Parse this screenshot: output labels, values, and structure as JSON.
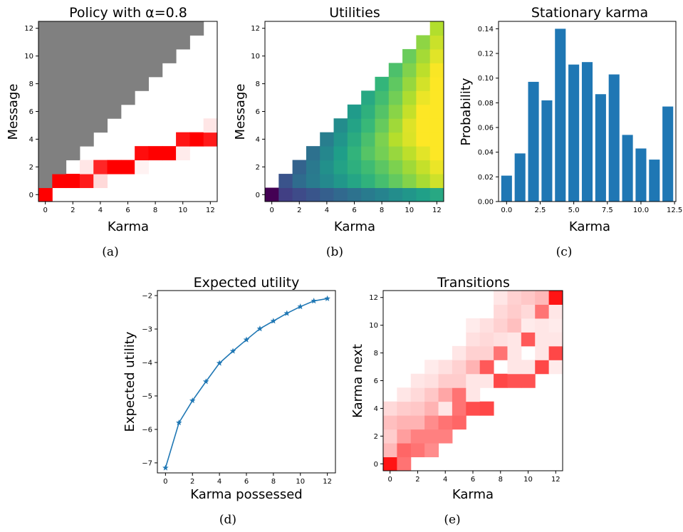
{
  "colors": {
    "policy_gray": "#808080",
    "policy_red": "#ff0000",
    "bar_blue": "#1f77b4",
    "line_blue": "#1f77b4",
    "transition_red": "#ff0000"
  },
  "captions": [
    "(a)",
    "(b)",
    "(c)",
    "(d)",
    "(e)"
  ],
  "chart_data": [
    {
      "id": "a",
      "type": "heatmap",
      "title": "Policy with α=0.8",
      "xlabel": "Karma",
      "ylabel": "Message",
      "x_ticks": [
        0,
        2,
        4,
        6,
        8,
        10,
        12
      ],
      "y_ticks": [
        0,
        2,
        4,
        6,
        8,
        10,
        12
      ],
      "size": 13,
      "note_values": "cell (karma k, message m): 'gray' = infeasible message (m > k); number = probability of sending that message",
      "policy": [
        {
          "karma": 0,
          "message_probs": {
            "0": 1.0
          }
        },
        {
          "karma": 1,
          "message_probs": {
            "1": 1.0
          }
        },
        {
          "karma": 2,
          "message_probs": {
            "1": 1.0
          }
        },
        {
          "karma": 3,
          "message_probs": {
            "1": 0.9,
            "2": 0.1
          }
        },
        {
          "karma": 4,
          "message_probs": {
            "1": 0.15,
            "2": 0.85
          }
        },
        {
          "karma": 5,
          "message_probs": {
            "2": 1.0
          }
        },
        {
          "karma": 6,
          "message_probs": {
            "2": 1.0
          }
        },
        {
          "karma": 7,
          "message_probs": {
            "2": 0.05,
            "3": 0.95
          }
        },
        {
          "karma": 8,
          "message_probs": {
            "3": 1.0
          }
        },
        {
          "karma": 9,
          "message_probs": {
            "3": 1.0
          }
        },
        {
          "karma": 10,
          "message_probs": {
            "3": 0.08,
            "4": 0.92
          }
        },
        {
          "karma": 11,
          "message_probs": {
            "4": 1.0
          }
        },
        {
          "karma": 12,
          "message_probs": {
            "4": 0.9,
            "5": 0.1
          }
        }
      ]
    },
    {
      "id": "b",
      "type": "heatmap",
      "title": "Utilities",
      "xlabel": "Karma",
      "ylabel": "Message",
      "x_ticks": [
        0,
        2,
        4,
        6,
        8,
        10,
        12
      ],
      "y_ticks": [
        0,
        2,
        4,
        6,
        8,
        10,
        12
      ],
      "size": 13,
      "colormap": "viridis",
      "note_values": "defined for message <= karma; color increases with karma, bottom row lower"
    },
    {
      "id": "c",
      "type": "bar",
      "title": "Stationary karma",
      "xlabel": "Karma",
      "ylabel": "Probability",
      "categories": [
        0,
        1,
        2,
        3,
        4,
        5,
        6,
        7,
        8,
        9,
        10,
        11,
        12
      ],
      "values": [
        0.021,
        0.039,
        0.097,
        0.082,
        0.14,
        0.111,
        0.113,
        0.087,
        0.103,
        0.054,
        0.043,
        0.034,
        0.077
      ],
      "xlim": [
        -0.6,
        12.6
      ],
      "ylim": [
        0,
        0.146
      ],
      "x_ticks": [
        "0.0",
        "2.5",
        "5.0",
        "7.5",
        "10.0",
        "12.5"
      ],
      "y_ticks": [
        "0.00",
        "0.02",
        "0.04",
        "0.06",
        "0.08",
        "0.10",
        "0.12",
        "0.14"
      ]
    },
    {
      "id": "d",
      "type": "line",
      "title": "Expected utility",
      "xlabel": "Karma possessed",
      "ylabel": "Expected utility",
      "x": [
        0,
        1,
        2,
        3,
        4,
        5,
        6,
        7,
        8,
        9,
        10,
        11,
        12
      ],
      "y": [
        -7.15,
        -5.8,
        -5.14,
        -4.57,
        -4.02,
        -3.66,
        -3.32,
        -2.99,
        -2.76,
        -2.53,
        -2.33,
        -2.16,
        -2.09
      ],
      "xlim": [
        -0.6,
        12.6
      ],
      "ylim": [
        -7.3,
        -1.85
      ],
      "x_ticks": [
        0,
        2,
        4,
        6,
        8,
        10,
        12
      ],
      "y_ticks": [
        -7,
        -6,
        -5,
        -4,
        -3,
        -2
      ],
      "marker": "star"
    },
    {
      "id": "e",
      "type": "heatmap",
      "title": "Transitions",
      "xlabel": "Karma",
      "ylabel": "Karma next",
      "x_ticks": [
        0,
        2,
        4,
        6,
        8,
        10,
        12
      ],
      "y_ticks": [
        0,
        2,
        4,
        6,
        8,
        10,
        12
      ],
      "size": 13,
      "note_values": "cells: [karma, karma_next, intensity 0-1]",
      "cells": [
        [
          0,
          0,
          0.92
        ],
        [
          0,
          1,
          0.28
        ],
        [
          0,
          2,
          0.2
        ],
        [
          0,
          3,
          0.25
        ],
        [
          0,
          4,
          0.15
        ],
        [
          1,
          0,
          0.55
        ],
        [
          1,
          1,
          0.6
        ],
        [
          1,
          2,
          0.38
        ],
        [
          1,
          3,
          0.3
        ],
        [
          1,
          4,
          0.2
        ],
        [
          1,
          5,
          0.1
        ],
        [
          2,
          1,
          0.55
        ],
        [
          2,
          2,
          0.5
        ],
        [
          2,
          3,
          0.3
        ],
        [
          2,
          4,
          0.22
        ],
        [
          2,
          5,
          0.15
        ],
        [
          2,
          6,
          0.1
        ],
        [
          3,
          1,
          0.45
        ],
        [
          3,
          2,
          0.5
        ],
        [
          3,
          3,
          0.45
        ],
        [
          3,
          4,
          0.3
        ],
        [
          3,
          5,
          0.22
        ],
        [
          3,
          6,
          0.12
        ],
        [
          3,
          7,
          0.08
        ],
        [
          4,
          2,
          0.5
        ],
        [
          4,
          3,
          0.55
        ],
        [
          4,
          4,
          0.1
        ],
        [
          4,
          5,
          0.35
        ],
        [
          4,
          6,
          0.2
        ],
        [
          4,
          7,
          0.12
        ],
        [
          5,
          3,
          0.6
        ],
        [
          5,
          4,
          0.55
        ],
        [
          5,
          5,
          0.55
        ],
        [
          5,
          6,
          0.2
        ],
        [
          5,
          7,
          0.18
        ],
        [
          5,
          8,
          0.1
        ],
        [
          6,
          4,
          0.7
        ],
        [
          6,
          5,
          0.1
        ],
        [
          6,
          6,
          0.1
        ],
        [
          6,
          7,
          0.3
        ],
        [
          6,
          8,
          0.18
        ],
        [
          6,
          9,
          0.12
        ],
        [
          6,
          10,
          0.08
        ],
        [
          7,
          4,
          0.72
        ],
        [
          7,
          6,
          0.1
        ],
        [
          7,
          7,
          0.65
        ],
        [
          7,
          8,
          0.18
        ],
        [
          7,
          9,
          0.15
        ],
        [
          7,
          10,
          0.12
        ],
        [
          8,
          6,
          0.72
        ],
        [
          8,
          8,
          0.55
        ],
        [
          8,
          9,
          0.12
        ],
        [
          8,
          10,
          0.18
        ],
        [
          8,
          11,
          0.15
        ],
        [
          8,
          12,
          0.1
        ],
        [
          9,
          6,
          0.68
        ],
        [
          9,
          7,
          0.1
        ],
        [
          9,
          8,
          0.1
        ],
        [
          9,
          9,
          0.1
        ],
        [
          9,
          10,
          0.25
        ],
        [
          9,
          11,
          0.2
        ],
        [
          9,
          12,
          0.18
        ],
        [
          10,
          6,
          0.68
        ],
        [
          10,
          7,
          0.1
        ],
        [
          10,
          9,
          0.65
        ],
        [
          10,
          10,
          0.08
        ],
        [
          10,
          11,
          0.15
        ],
        [
          10,
          12,
          0.22
        ],
        [
          11,
          7,
          0.72
        ],
        [
          11,
          8,
          0.1
        ],
        [
          11,
          9,
          0.1
        ],
        [
          11,
          10,
          0.1
        ],
        [
          11,
          11,
          0.55
        ],
        [
          11,
          12,
          0.28
        ],
        [
          12,
          7,
          0.08
        ],
        [
          12,
          8,
          0.72
        ],
        [
          12,
          9,
          0.1
        ],
        [
          12,
          10,
          0.08
        ],
        [
          12,
          11,
          0.1
        ],
        [
          12,
          12,
          0.92
        ]
      ]
    }
  ]
}
